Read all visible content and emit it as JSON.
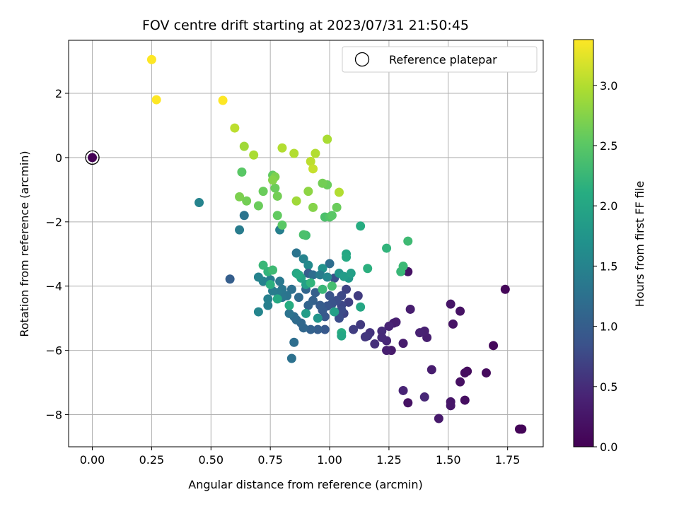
{
  "chart_data": {
    "type": "scatter",
    "title": "FOV centre drift starting at 2023/07/31 21:50:45",
    "xlabel": "Angular distance from reference (arcmin)",
    "ylabel": "Rotation from reference (arcmin)",
    "xlim": [
      -0.1,
      1.9
    ],
    "ylim": [
      -9.0,
      3.65
    ],
    "x_ticks": [
      0.0,
      0.25,
      0.5,
      0.75,
      1.0,
      1.25,
      1.5,
      1.75
    ],
    "x_tick_labels": [
      "0.00",
      "0.25",
      "0.50",
      "0.75",
      "1.00",
      "1.25",
      "1.50",
      "1.75"
    ],
    "y_ticks": [
      -8,
      -6,
      -4,
      -2,
      0,
      2
    ],
    "y_tick_labels": [
      "−8",
      "−6",
      "−4",
      "−2",
      "0",
      "2"
    ],
    "grid": true,
    "legend": {
      "position": "top-right",
      "entries": [
        "Reference platepar"
      ]
    },
    "colorbar": {
      "label": "Hours from first FF file",
      "range": [
        0.0,
        3.38
      ],
      "ticks": [
        0.0,
        0.5,
        1.0,
        1.5,
        2.0,
        2.5,
        3.0
      ],
      "tick_labels": [
        "0.0",
        "0.5",
        "1.0",
        "1.5",
        "2.0",
        "2.5",
        "3.0"
      ],
      "colormap": "viridis"
    },
    "reference_point": {
      "x": 0.0,
      "y": 0.0
    },
    "points": [
      [
        0.0,
        0.0,
        0.0
      ],
      [
        1.81,
        -8.45,
        0.05
      ],
      [
        1.8,
        -8.45,
        0.05
      ],
      [
        1.74,
        -4.1,
        0.07
      ],
      [
        1.69,
        -5.85,
        0.1
      ],
      [
        1.66,
        -6.7,
        0.12
      ],
      [
        1.58,
        -6.65,
        0.12
      ],
      [
        1.57,
        -6.7,
        0.14
      ],
      [
        1.57,
        -7.55,
        0.15
      ],
      [
        1.55,
        -6.98,
        0.18
      ],
      [
        1.55,
        -4.78,
        0.2
      ],
      [
        1.52,
        -5.18,
        0.22
      ],
      [
        1.51,
        -4.56,
        0.24
      ],
      [
        1.51,
        -7.6,
        0.25
      ],
      [
        1.51,
        -7.72,
        0.27
      ],
      [
        1.46,
        -8.12,
        0.3
      ],
      [
        1.43,
        -6.6,
        0.33
      ],
      [
        1.41,
        -5.6,
        0.35
      ],
      [
        1.4,
        -5.4,
        0.37
      ],
      [
        1.38,
        -5.45,
        0.4
      ],
      [
        1.4,
        -7.45,
        0.45
      ],
      [
        1.34,
        -4.72,
        0.35
      ],
      [
        1.33,
        -3.55,
        0.2
      ],
      [
        1.33,
        -7.63,
        0.2
      ],
      [
        1.31,
        -7.25,
        0.42
      ],
      [
        1.31,
        -5.78,
        0.32
      ],
      [
        1.28,
        -5.12,
        0.38
      ],
      [
        1.27,
        -5.15,
        0.35
      ],
      [
        1.26,
        -6.0,
        0.3
      ],
      [
        1.25,
        -5.25,
        0.42
      ],
      [
        1.24,
        -6.0,
        0.36
      ],
      [
        1.24,
        -5.7,
        0.44
      ],
      [
        1.22,
        -5.4,
        0.5
      ],
      [
        1.22,
        -5.6,
        0.48
      ],
      [
        1.19,
        -5.8,
        0.52
      ],
      [
        1.17,
        -5.45,
        0.55
      ],
      [
        1.16,
        -5.55,
        0.58
      ],
      [
        1.15,
        -5.58,
        0.6
      ],
      [
        1.13,
        -5.2,
        0.62
      ],
      [
        1.12,
        -4.3,
        0.64
      ],
      [
        1.1,
        -5.35,
        0.66
      ],
      [
        1.08,
        -4.5,
        0.68
      ],
      [
        1.07,
        -4.1,
        0.7
      ],
      [
        1.06,
        -4.85,
        0.72
      ],
      [
        1.05,
        -4.6,
        0.74
      ],
      [
        1.05,
        -4.3,
        0.76
      ],
      [
        1.05,
        -4.75,
        0.78
      ],
      [
        1.04,
        -5.0,
        0.8
      ],
      [
        1.03,
        -4.45,
        0.82
      ],
      [
        1.02,
        -3.75,
        0.84
      ],
      [
        1.01,
        -4.55,
        0.86
      ],
      [
        1.0,
        -4.3,
        0.88
      ],
      [
        0.99,
        -4.62,
        0.9
      ],
      [
        0.98,
        -4.95,
        0.92
      ],
      [
        0.98,
        -5.35,
        0.94
      ],
      [
        0.97,
        -4.75,
        0.96
      ],
      [
        0.96,
        -4.6,
        0.98
      ],
      [
        0.95,
        -5.35,
        1.0
      ],
      [
        0.94,
        -4.2,
        1.02
      ],
      [
        0.93,
        -4.45,
        1.04
      ],
      [
        0.92,
        -5.35,
        1.06
      ],
      [
        0.91,
        -4.6,
        1.08
      ],
      [
        0.9,
        -4.1,
        1.1
      ],
      [
        0.89,
        -5.3,
        1.12
      ],
      [
        0.88,
        -5.15,
        1.14
      ],
      [
        0.87,
        -4.35,
        1.16
      ],
      [
        0.86,
        -5.05,
        1.18
      ],
      [
        0.85,
        -4.95,
        1.2
      ],
      [
        0.85,
        -5.75,
        1.22
      ],
      [
        0.84,
        -4.1,
        1.24
      ],
      [
        0.84,
        -6.25,
        1.26
      ],
      [
        0.83,
        -4.85,
        1.28
      ],
      [
        0.82,
        -4.3,
        1.3
      ],
      [
        0.8,
        -4.35,
        1.32
      ],
      [
        0.8,
        -4.1,
        1.34
      ],
      [
        0.79,
        -3.85,
        1.36
      ],
      [
        0.78,
        -4.2,
        1.38
      ],
      [
        0.76,
        -4.15,
        1.4
      ],
      [
        0.75,
        -3.8,
        1.42
      ],
      [
        0.74,
        -4.6,
        1.44
      ],
      [
        0.74,
        -4.4,
        1.46
      ],
      [
        0.72,
        -3.85,
        1.48
      ],
      [
        0.7,
        -3.72,
        1.5
      ],
      [
        0.7,
        -4.8,
        1.52
      ],
      [
        0.58,
        -3.78,
        1.0
      ],
      [
        0.64,
        -1.8,
        1.3
      ],
      [
        0.62,
        -2.25,
        1.4
      ],
      [
        0.45,
        -1.4,
        1.5
      ],
      [
        0.79,
        -2.25,
        1.45
      ],
      [
        0.86,
        -2.97,
        1.3
      ],
      [
        0.89,
        -3.15,
        1.5
      ],
      [
        1.0,
        -3.3,
        1.2
      ],
      [
        0.91,
        -3.35,
        1.6
      ],
      [
        0.97,
        -3.45,
        1.7
      ],
      [
        0.91,
        -3.6,
        1.0
      ],
      [
        0.93,
        -3.65,
        1.2
      ],
      [
        0.96,
        -3.65,
        1.4
      ],
      [
        0.99,
        -3.72,
        1.55
      ],
      [
        1.04,
        -3.6,
        1.75
      ],
      [
        1.08,
        -3.75,
        1.8
      ],
      [
        1.06,
        -3.7,
        1.85
      ],
      [
        1.09,
        -3.6,
        1.9
      ],
      [
        1.07,
        -3.0,
        2.0
      ],
      [
        1.07,
        -3.1,
        2.05
      ],
      [
        1.13,
        -2.13,
        2.1
      ],
      [
        1.16,
        -3.45,
        2.15
      ],
      [
        1.24,
        -2.82,
        2.2
      ],
      [
        1.3,
        -3.55,
        2.25
      ],
      [
        1.31,
        -3.38,
        2.28
      ],
      [
        1.33,
        -2.6,
        2.3
      ],
      [
        1.13,
        -4.65,
        2.0
      ],
      [
        1.05,
        -5.45,
        2.1
      ],
      [
        1.05,
        -5.55,
        2.0
      ],
      [
        1.02,
        -4.8,
        1.9
      ],
      [
        0.95,
        -5.0,
        1.75
      ],
      [
        0.9,
        -4.85,
        1.85
      ],
      [
        0.9,
        -3.95,
        1.9
      ],
      [
        0.88,
        -3.75,
        1.95
      ],
      [
        0.86,
        -3.6,
        2.0
      ],
      [
        0.87,
        -3.65,
        2.05
      ],
      [
        0.83,
        -4.6,
        2.1
      ],
      [
        0.78,
        -4.4,
        2.05
      ],
      [
        0.75,
        -3.95,
        2.15
      ],
      [
        0.74,
        -3.55,
        2.2
      ],
      [
        0.72,
        -3.35,
        2.25
      ],
      [
        0.76,
        -3.5,
        2.3
      ],
      [
        0.92,
        -3.9,
        2.2
      ],
      [
        0.97,
        -4.1,
        2.25
      ],
      [
        1.01,
        -4.0,
        2.35
      ],
      [
        0.98,
        -1.85,
        2.4
      ],
      [
        1.0,
        -1.85,
        2.45
      ],
      [
        1.01,
        -1.8,
        2.5
      ],
      [
        0.99,
        -0.85,
        2.6
      ],
      [
        0.97,
        -0.8,
        2.65
      ],
      [
        0.93,
        -1.55,
        2.75
      ],
      [
        0.91,
        -1.05,
        2.8
      ],
      [
        0.9,
        -2.42,
        2.35
      ],
      [
        0.89,
        -2.4,
        2.4
      ],
      [
        0.8,
        -2.1,
        2.5
      ],
      [
        0.78,
        -1.8,
        2.55
      ],
      [
        0.77,
        -0.95,
        2.6
      ],
      [
        0.78,
        -1.2,
        2.65
      ],
      [
        0.76,
        -0.55,
        2.55
      ],
      [
        0.77,
        -0.6,
        2.7
      ],
      [
        0.76,
        -0.7,
        2.75
      ],
      [
        0.72,
        -1.05,
        2.6
      ],
      [
        0.7,
        -1.5,
        2.6
      ],
      [
        0.65,
        -1.35,
        2.65
      ],
      [
        0.63,
        -0.45,
        2.5
      ],
      [
        0.62,
        -1.22,
        2.7
      ],
      [
        0.64,
        0.35,
        2.9
      ],
      [
        0.68,
        0.08,
        2.95
      ],
      [
        0.6,
        0.92,
        3.05
      ],
      [
        0.8,
        0.3,
        3.0
      ],
      [
        0.85,
        0.13,
        3.0
      ],
      [
        0.92,
        -0.12,
        3.05
      ],
      [
        0.93,
        -0.35,
        3.1
      ],
      [
        0.94,
        0.13,
        3.0
      ],
      [
        0.99,
        0.57,
        2.95
      ],
      [
        1.04,
        -1.08,
        3.0
      ],
      [
        1.03,
        -1.55,
        2.6
      ],
      [
        0.86,
        -1.35,
        2.9
      ],
      [
        0.55,
        1.78,
        3.38
      ],
      [
        0.27,
        1.8,
        3.38
      ],
      [
        0.25,
        3.05,
        3.38
      ]
    ]
  }
}
